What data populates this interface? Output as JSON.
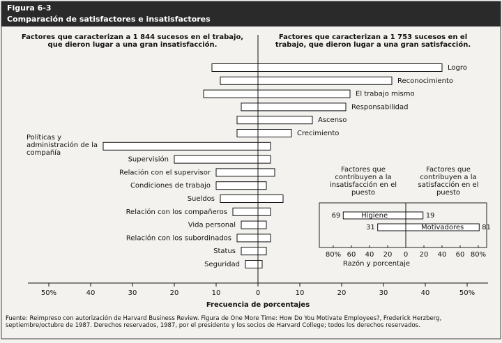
{
  "figure": {
    "label": "Figura 6-3",
    "title": "Comparación de satisfactores e insatisfactores",
    "source": "Fuente: Reimpreso con autorización de Harvard Business Review. Figura de One More Time: How Do You Motivate Employees?, Frederick Herzberg, septiembre/octubre de 1987. Derechos reservados, 1987, por el presidente y los socios de Harvard College; todos los derechos reservados."
  },
  "chart_data": [
    {
      "type": "diverging_bar",
      "categories": [
        "Logro",
        "Reconocimiento",
        "El trabajo mismo",
        "Responsabilidad",
        "Ascenso",
        "Crecimiento",
        "Políticas y administración de la compañía",
        "Supervisión",
        "Relación con el supervisor",
        "Condiciones de trabajo",
        "Sueldos",
        "Relación con los compañeros",
        "Vida personal",
        "Relación con los subordinados",
        "Status",
        "Seguridad"
      ],
      "series": [
        {
          "name": "Factores que caracterizan a 1 844 sucesos en el trabajo, que dieron lugar a una gran insatisfacción.",
          "side": "left",
          "color": "#ffffff",
          "values": [
            11,
            9,
            13,
            4,
            5,
            5,
            37,
            20,
            10,
            10,
            9,
            6,
            4,
            5,
            4,
            3
          ]
        },
        {
          "name": "Factores que caracterizan a 1 753 sucesos en el trabajo, que dieron lugar a una gran satisfacción.",
          "side": "right",
          "color": "#ffffff",
          "values": [
            44,
            32,
            22,
            21,
            13,
            8,
            3,
            3,
            4,
            2,
            6,
            3,
            2,
            3,
            2,
            1
          ]
        }
      ],
      "x_label": "Frecuencia de porcentajes",
      "xlim": [
        -50,
        50
      ],
      "xticks": [
        {
          "value": -50,
          "label": "50%"
        },
        {
          "value": -40,
          "label": "40"
        },
        {
          "value": -30,
          "label": "30"
        },
        {
          "value": -20,
          "label": "20"
        },
        {
          "value": -10,
          "label": "10"
        },
        0,
        10,
        20,
        30,
        40,
        {
          "value": 50,
          "label": "50%"
        }
      ]
    },
    {
      "type": "diverging_bar",
      "categories": [
        "Higiene",
        "Motivadores"
      ],
      "series": [
        {
          "name": "Factores que contribuyen a la insatisfacción en el puesto",
          "side": "left",
          "color": "#ffffff",
          "values": [
            69,
            31
          ]
        },
        {
          "name": "Factores que contribuyen a la satisfacción en el puesto",
          "side": "right",
          "color": "#ffffff",
          "values": [
            19,
            81
          ]
        }
      ],
      "x_label": "Razón y porcentaje",
      "xlim": [
        -80,
        80
      ],
      "xticks": [
        {
          "value": -80,
          "label": "80%"
        },
        {
          "value": -60,
          "label": "60"
        },
        {
          "value": -40,
          "label": "40"
        },
        {
          "value": -20,
          "label": "20"
        },
        0,
        20,
        40,
        60,
        {
          "value": 80,
          "label": "80%"
        }
      ]
    }
  ]
}
